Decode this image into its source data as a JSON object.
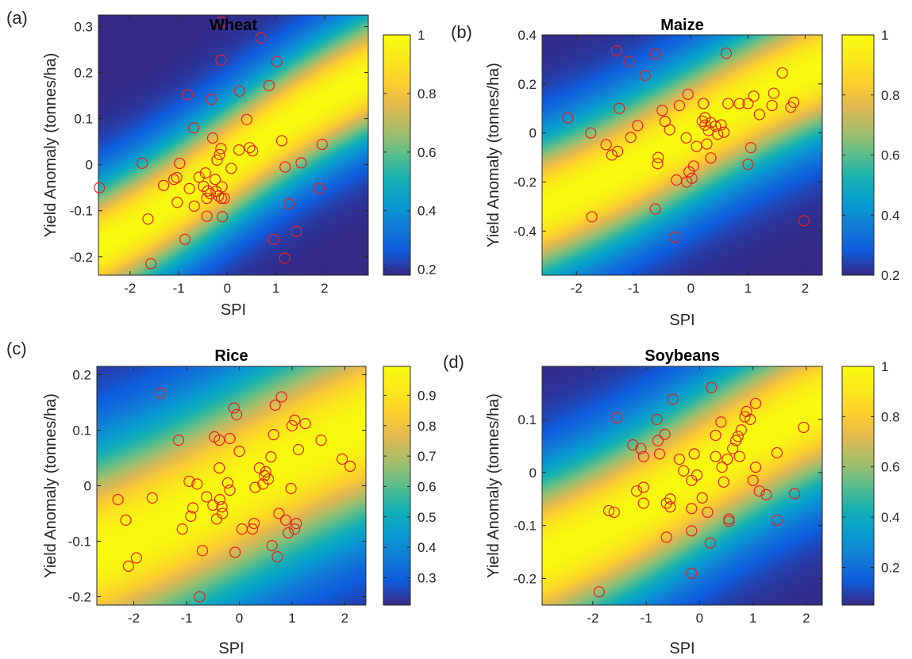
{
  "chart_data": [
    {
      "type": "scatter",
      "panel_label": "(a)",
      "title": "Wheat",
      "xlabel": "SPI",
      "ylabel": "Yield Anomaly (tonnes/ha)",
      "xlim": [
        -2.65,
        2.9
      ],
      "ylim": [
        -0.24,
        0.325
      ],
      "xticks": [
        -2,
        -1,
        0,
        1,
        2
      ],
      "yticks": [
        -0.2,
        -0.1,
        0,
        0.1,
        0.2,
        0.3
      ],
      "xtick_labels": [
        "-2",
        "-1",
        "0",
        "1",
        "2"
      ],
      "ytick_labels": [
        "-0.2",
        "-0.1",
        "0",
        "0.1",
        "0.2",
        "0.3"
      ],
      "colorbar": {
        "min": 0.18,
        "max": 1.0,
        "ticks": [
          0.2,
          0.4,
          0.6,
          0.8,
          1.0
        ],
        "tick_labels": [
          "0.2",
          "0.4",
          "0.6",
          "0.8",
          "1"
        ]
      },
      "background": {
        "type": "heatmap",
        "colormap": "parula",
        "slope": 0.075,
        "width": 0.095,
        "low": 0.18,
        "high": 1.0
      },
      "points": [
        [
          -2.63,
          -0.05
        ],
        [
          -1.75,
          0.003
        ],
        [
          -1.63,
          -0.118
        ],
        [
          -1.57,
          -0.215
        ],
        [
          -1.31,
          -0.045
        ],
        [
          -1.1,
          -0.032
        ],
        [
          -1.04,
          -0.028
        ],
        [
          -1.03,
          -0.082
        ],
        [
          -0.98,
          0.003
        ],
        [
          -0.87,
          -0.162
        ],
        [
          -0.82,
          0.152
        ],
        [
          -0.78,
          -0.052
        ],
        [
          -0.69,
          0.08
        ],
        [
          -0.68,
          -0.09
        ],
        [
          -0.58,
          -0.027
        ],
        [
          -0.49,
          -0.047
        ],
        [
          -0.45,
          -0.018
        ],
        [
          -0.42,
          -0.073
        ],
        [
          -0.42,
          -0.112
        ],
        [
          -0.4,
          -0.057
        ],
        [
          -0.35,
          -0.063
        ],
        [
          -0.33,
          0.142
        ],
        [
          -0.3,
          0.058
        ],
        [
          -0.25,
          -0.032
        ],
        [
          -0.23,
          -0.058
        ],
        [
          -0.21,
          0.01
        ],
        [
          -0.18,
          -0.068
        ],
        [
          -0.16,
          0.022
        ],
        [
          -0.13,
          0.035
        ],
        [
          -0.13,
          0.227
        ],
        [
          -0.12,
          -0.073
        ],
        [
          -0.11,
          -0.048
        ],
        [
          -0.1,
          -0.113
        ],
        [
          -0.06,
          -0.073
        ],
        [
          -0.12,
          0.31
        ],
        [
          0.08,
          -0.008
        ],
        [
          0.24,
          0.032
        ],
        [
          0.25,
          0.16
        ],
        [
          0.4,
          0.098
        ],
        [
          0.46,
          0.037
        ],
        [
          0.52,
          0.03
        ],
        [
          0.69,
          0.275
        ],
        [
          0.86,
          0.172
        ],
        [
          0.95,
          -0.162
        ],
        [
          1.02,
          0.224
        ],
        [
          1.12,
          0.052
        ],
        [
          1.18,
          -0.203
        ],
        [
          1.19,
          -0.005
        ],
        [
          1.27,
          -0.085
        ],
        [
          1.42,
          -0.145
        ],
        [
          1.52,
          0.004
        ],
        [
          1.89,
          -0.052
        ],
        [
          1.95,
          0.044
        ]
      ]
    },
    {
      "type": "scatter",
      "panel_label": "(b)",
      "title": "Maize",
      "xlabel": "SPI",
      "ylabel": "Yield Anomaly (tonnes/ha)",
      "xlim": [
        -2.6,
        2.3
      ],
      "ylim": [
        -0.58,
        0.4
      ],
      "xticks": [
        -2,
        -1,
        0,
        1,
        2
      ],
      "yticks": [
        -0.4,
        -0.2,
        0,
        0.2,
        0.4
      ],
      "xtick_labels": [
        "-2",
        "-1",
        "0",
        "1",
        "2"
      ],
      "ytick_labels": [
        "-0.4",
        "-0.2",
        "0",
        "0.2",
        "0.4"
      ],
      "colorbar": {
        "min": 0.2,
        "max": 1.0,
        "ticks": [
          0.2,
          0.4,
          0.6,
          0.8,
          1.0
        ],
        "tick_labels": [
          "0.2",
          "0.4",
          "0.6",
          "0.8",
          "1"
        ]
      },
      "background": {
        "type": "heatmap",
        "colormap": "parula",
        "slope": 0.13,
        "width": 0.2,
        "low": 0.2,
        "high": 1.0
      },
      "points": [
        [
          -2.15,
          0.062
        ],
        [
          -1.75,
          0.0
        ],
        [
          -1.73,
          -0.342
        ],
        [
          -1.48,
          -0.048
        ],
        [
          -1.38,
          -0.09
        ],
        [
          -1.3,
          0.335
        ],
        [
          -1.28,
          -0.075
        ],
        [
          -1.25,
          0.1
        ],
        [
          -1.08,
          0.292
        ],
        [
          -1.05,
          -0.018
        ],
        [
          -0.93,
          0.03
        ],
        [
          -0.8,
          0.235
        ],
        [
          -0.62,
          0.322
        ],
        [
          -0.58,
          -0.125
        ],
        [
          -0.62,
          -0.31
        ],
        [
          -0.57,
          -0.1
        ],
        [
          -0.5,
          0.092
        ],
        [
          -0.45,
          0.047
        ],
        [
          -0.37,
          0.013
        ],
        [
          -0.28,
          -0.425
        ],
        [
          -0.25,
          -0.192
        ],
        [
          -0.2,
          0.112
        ],
        [
          -0.08,
          -0.02
        ],
        [
          -0.07,
          -0.2
        ],
        [
          -0.05,
          0.158
        ],
        [
          -0.03,
          -0.158
        ],
        [
          0.02,
          -0.185
        ],
        [
          0.05,
          -0.135
        ],
        [
          0.1,
          -0.055
        ],
        [
          0.2,
          0.048
        ],
        [
          0.22,
          0.12
        ],
        [
          0.25,
          0.062
        ],
        [
          0.25,
          0.032
        ],
        [
          0.28,
          -0.045
        ],
        [
          0.31,
          0.01
        ],
        [
          0.35,
          0.042
        ],
        [
          0.35,
          -0.102
        ],
        [
          0.43,
          0.028
        ],
        [
          0.47,
          -0.005
        ],
        [
          0.53,
          0.033
        ],
        [
          0.58,
          0.003
        ],
        [
          0.62,
          0.325
        ],
        [
          0.65,
          0.12
        ],
        [
          0.85,
          0.12
        ],
        [
          1.0,
          0.12
        ],
        [
          1.0,
          -0.128
        ],
        [
          1.05,
          -0.06
        ],
        [
          1.1,
          0.15
        ],
        [
          1.2,
          0.075
        ],
        [
          1.42,
          0.112
        ],
        [
          1.45,
          0.162
        ],
        [
          1.6,
          0.245
        ],
        [
          1.75,
          0.105
        ],
        [
          1.8,
          0.125
        ],
        [
          1.98,
          -0.358
        ]
      ]
    },
    {
      "type": "scatter",
      "panel_label": "(c)",
      "title": "Rice",
      "xlabel": "SPI",
      "ylabel": "Yield Anomaly (tonnes/ha)",
      "xlim": [
        -2.7,
        2.4
      ],
      "ylim": [
        -0.215,
        0.215
      ],
      "xticks": [
        -2,
        -1,
        0,
        1,
        2
      ],
      "yticks": [
        -0.2,
        -0.1,
        0,
        0.1,
        0.2
      ],
      "xtick_labels": [
        "-2",
        "-1",
        "0",
        "1",
        "2"
      ],
      "ytick_labels": [
        "-0.2",
        "-0.1",
        "0",
        "0.1",
        "0.2"
      ],
      "colorbar": {
        "min": 0.21,
        "max": 0.995,
        "ticks": [
          0.3,
          0.4,
          0.5,
          0.6,
          0.7,
          0.8,
          0.9
        ],
        "tick_labels": [
          "0.3",
          "0.4",
          "0.5",
          "0.6",
          "0.7",
          "0.8",
          "0.9"
        ]
      },
      "background": {
        "type": "heatmap",
        "colormap": "parula",
        "slope": 0.05,
        "width": 0.13,
        "low": 0.21,
        "high": 0.995
      },
      "points": [
        [
          -2.3,
          -0.025
        ],
        [
          -2.15,
          -0.062
        ],
        [
          -2.1,
          -0.145
        ],
        [
          -1.95,
          -0.13
        ],
        [
          -1.65,
          -0.022
        ],
        [
          -1.5,
          0.167
        ],
        [
          -1.15,
          0.082
        ],
        [
          -1.08,
          -0.078
        ],
        [
          -0.95,
          0.008
        ],
        [
          -0.92,
          -0.055
        ],
        [
          -0.88,
          -0.04
        ],
        [
          -0.8,
          0.003
        ],
        [
          -0.75,
          -0.2
        ],
        [
          -0.7,
          -0.117
        ],
        [
          -0.62,
          -0.02
        ],
        [
          -0.5,
          -0.035
        ],
        [
          -0.47,
          0.088
        ],
        [
          -0.43,
          -0.06
        ],
        [
          -0.38,
          0.082
        ],
        [
          -0.38,
          0.032
        ],
        [
          -0.37,
          -0.025
        ],
        [
          -0.33,
          -0.038
        ],
        [
          -0.32,
          -0.05
        ],
        [
          -0.22,
          0.005
        ],
        [
          -0.18,
          -0.008
        ],
        [
          -0.18,
          0.085
        ],
        [
          -0.1,
          0.14
        ],
        [
          -0.08,
          -0.12
        ],
        [
          -0.05,
          0.128
        ],
        [
          0.0,
          0.062
        ],
        [
          0.05,
          -0.078
        ],
        [
          0.25,
          -0.078
        ],
        [
          0.28,
          -0.068
        ],
        [
          0.3,
          -0.003
        ],
        [
          0.38,
          0.032
        ],
        [
          0.45,
          0.003
        ],
        [
          0.48,
          0.018
        ],
        [
          0.5,
          0.025
        ],
        [
          0.55,
          0.012
        ],
        [
          0.6,
          0.052
        ],
        [
          0.62,
          -0.108
        ],
        [
          0.65,
          0.092
        ],
        [
          0.68,
          0.145
        ],
        [
          0.72,
          -0.128
        ],
        [
          0.75,
          -0.05
        ],
        [
          0.8,
          0.16
        ],
        [
          0.88,
          -0.062
        ],
        [
          0.93,
          -0.085
        ],
        [
          0.98,
          -0.005
        ],
        [
          1.0,
          0.108
        ],
        [
          1.05,
          0.118
        ],
        [
          1.08,
          -0.068
        ],
        [
          1.12,
          0.065
        ],
        [
          1.25,
          0.112
        ],
        [
          1.55,
          0.082
        ],
        [
          1.95,
          0.048
        ],
        [
          2.1,
          0.035
        ],
        [
          1.05,
          -0.078
        ]
      ]
    },
    {
      "type": "scatter",
      "panel_label": "(d)",
      "title": "Soybeans",
      "xlabel": "SPI",
      "ylabel": "Yield Anomaly (tonnes/ha)",
      "xlim": [
        -2.95,
        2.3
      ],
      "ylim": [
        -0.25,
        0.2
      ],
      "xticks": [
        -2,
        -1,
        0,
        1,
        2
      ],
      "yticks": [
        -0.2,
        -0.1,
        0,
        0.1
      ],
      "xtick_labels": [
        "-2",
        "-1",
        "0",
        "1",
        "2"
      ],
      "ytick_labels": [
        "-0.2",
        "-0.1",
        "0",
        "0.1"
      ],
      "colorbar": {
        "min": 0.05,
        "max": 1.0,
        "ticks": [
          0.2,
          0.4,
          0.6,
          0.8,
          1.0
        ],
        "tick_labels": [
          "0.2",
          "0.4",
          "0.6",
          "0.8",
          "1"
        ]
      },
      "background": {
        "type": "heatmap",
        "colormap": "parula",
        "slope": 0.062,
        "width": 0.11,
        "low": 0.05,
        "high": 1.0
      },
      "points": [
        [
          -1.88,
          -0.225
        ],
        [
          -1.7,
          -0.072
        ],
        [
          -1.6,
          -0.075
        ],
        [
          -1.55,
          0.103
        ],
        [
          -1.25,
          0.052
        ],
        [
          -1.18,
          -0.035
        ],
        [
          -1.1,
          0.045
        ],
        [
          -1.05,
          0.03
        ],
        [
          -1.05,
          -0.058
        ],
        [
          -1.05,
          -0.028
        ],
        [
          -0.8,
          0.1
        ],
        [
          -0.78,
          0.06
        ],
        [
          -0.75,
          0.035
        ],
        [
          -0.65,
          0.072
        ],
        [
          -0.62,
          -0.058
        ],
        [
          -0.62,
          -0.122
        ],
        [
          -0.55,
          -0.05
        ],
        [
          -0.55,
          -0.065
        ],
        [
          -0.5,
          0.138
        ],
        [
          -0.38,
          0.025
        ],
        [
          -0.3,
          0.003
        ],
        [
          -0.15,
          -0.015
        ],
        [
          -0.15,
          -0.068
        ],
        [
          -0.15,
          -0.11
        ],
        [
          -0.15,
          -0.19
        ],
        [
          -0.1,
          0.035
        ],
        [
          -0.05,
          -0.005
        ],
        [
          0.05,
          -0.048
        ],
        [
          0.15,
          -0.075
        ],
        [
          0.2,
          -0.133
        ],
        [
          0.22,
          0.16
        ],
        [
          0.3,
          0.03
        ],
        [
          0.3,
          0.07
        ],
        [
          0.4,
          0.095
        ],
        [
          0.42,
          0.01
        ],
        [
          0.45,
          -0.018
        ],
        [
          0.52,
          0.025
        ],
        [
          0.55,
          -0.088
        ],
        [
          0.55,
          -0.092
        ],
        [
          0.62,
          0.045
        ],
        [
          0.68,
          0.06
        ],
        [
          0.72,
          0.068
        ],
        [
          0.75,
          0.03
        ],
        [
          0.78,
          0.08
        ],
        [
          0.85,
          0.105
        ],
        [
          0.88,
          0.115
        ],
        [
          0.95,
          0.1
        ],
        [
          1.0,
          -0.015
        ],
        [
          1.05,
          0.01
        ],
        [
          1.05,
          0.13
        ],
        [
          1.12,
          -0.035
        ],
        [
          1.25,
          -0.042
        ],
        [
          1.45,
          0.037
        ],
        [
          1.45,
          -0.09
        ],
        [
          1.78,
          -0.04
        ],
        [
          1.95,
          0.085
        ]
      ]
    }
  ]
}
